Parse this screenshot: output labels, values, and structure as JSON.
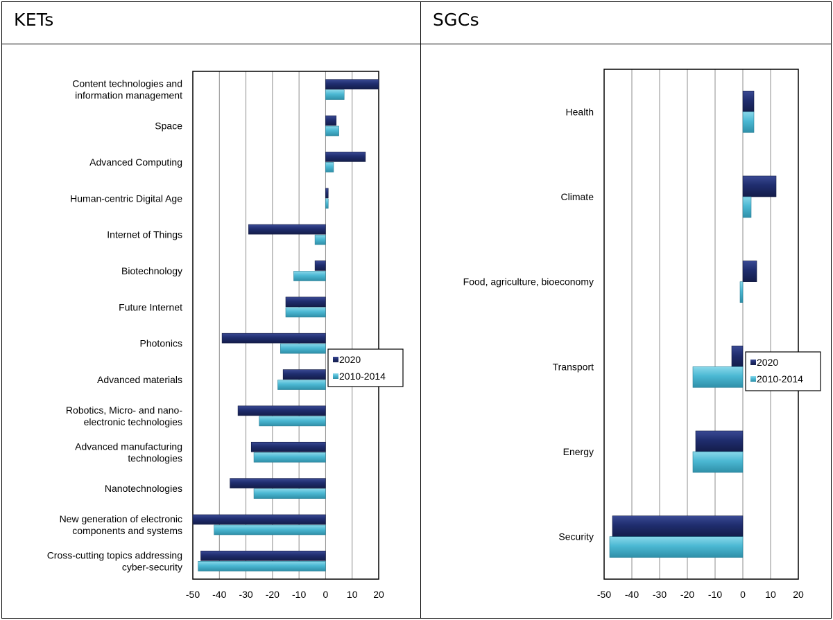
{
  "panels": {
    "left_title": "KETs",
    "right_title": "SGCs"
  },
  "colors": {
    "series_2020": "#1f2d6e",
    "series_2010_2014": "#4bb8d3",
    "grid": "#8c8c8c"
  },
  "chart_data": [
    {
      "type": "bar",
      "orientation": "horizontal",
      "title": "KETs",
      "xlim": [
        -50,
        20
      ],
      "xticks": [
        -50,
        -40,
        -30,
        -20,
        -10,
        0,
        10,
        20
      ],
      "grid": true,
      "legend": "right-middle",
      "categories": [
        [
          "Content technologies and",
          "information management"
        ],
        [
          "Space"
        ],
        [
          "Advanced Computing"
        ],
        [
          "Human-centric Digital Age"
        ],
        [
          "Internet of Things"
        ],
        [
          "Biotechnology"
        ],
        [
          "Future Internet"
        ],
        [
          "Photonics"
        ],
        [
          "Advanced materials"
        ],
        [
          "Robotics, Micro- and nano-",
          "electronic technologies"
        ],
        [
          "Advanced manufacturing",
          "technologies"
        ],
        [
          "Nanotechnologies"
        ],
        [
          "New generation of electronic",
          "components and systems"
        ],
        [
          "Cross-cutting topics addressing",
          "cyber-security"
        ]
      ],
      "series": [
        {
          "name": "2020",
          "values": [
            20,
            4,
            15,
            1,
            -29,
            -4,
            -15,
            -39,
            -16,
            -33,
            -28,
            -36,
            -50,
            -47
          ]
        },
        {
          "name": "2010-2014",
          "values": [
            7,
            5,
            3,
            1,
            -4,
            -12,
            -15,
            -17,
            -18,
            -25,
            -27,
            -27,
            -42,
            -48
          ]
        }
      ]
    },
    {
      "type": "bar",
      "orientation": "horizontal",
      "title": "SGCs",
      "xlim": [
        -50,
        20
      ],
      "xticks": [
        -50,
        -40,
        -30,
        -20,
        -10,
        0,
        10,
        20
      ],
      "grid": true,
      "legend": "right-middle",
      "categories": [
        [
          "Health"
        ],
        [
          "Climate"
        ],
        [
          "Food, agriculture, bioeconomy"
        ],
        [
          "Transport"
        ],
        [
          "Energy"
        ],
        [
          "Security"
        ]
      ],
      "series": [
        {
          "name": "2020",
          "values": [
            4,
            12,
            5,
            -4,
            -17,
            -47
          ]
        },
        {
          "name": "2010-2014",
          "values": [
            4,
            3,
            -1,
            -18,
            -18,
            -48
          ]
        }
      ]
    }
  ]
}
